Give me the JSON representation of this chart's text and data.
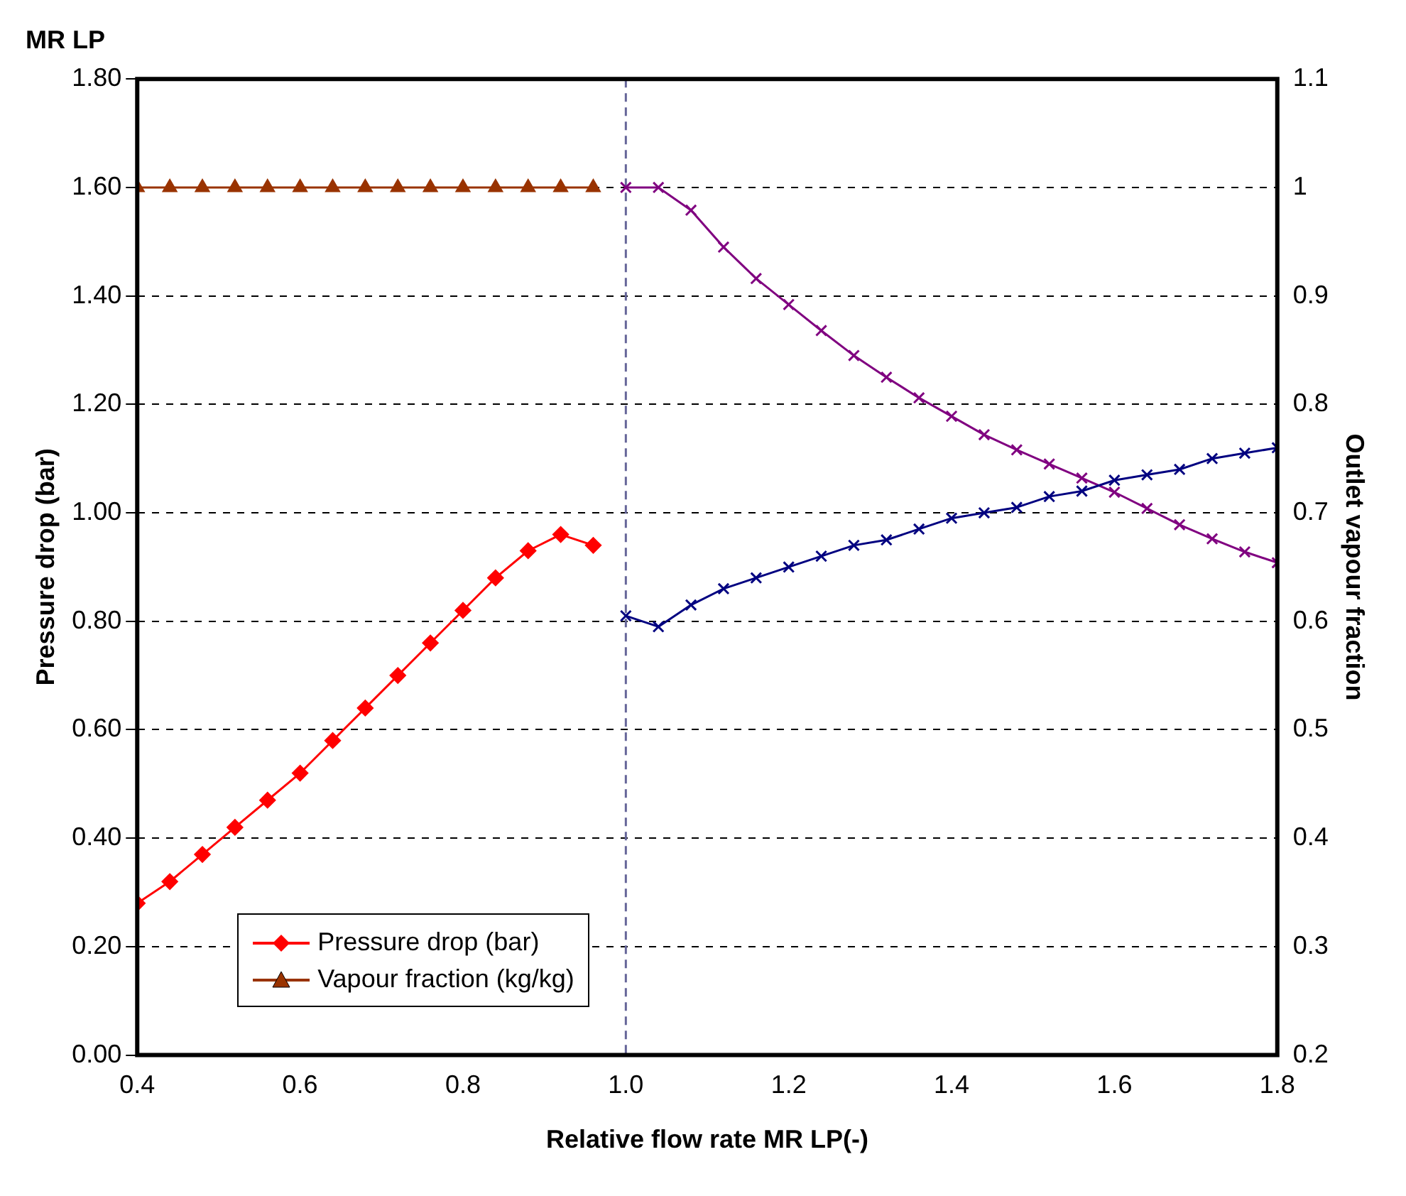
{
  "chart_data": {
    "type": "line",
    "title": "MR LP",
    "xlabel": "Relative flow rate MR LP(-)",
    "ylabel": "Pressure drop (bar)",
    "y2label": "Outlet vapour fraction",
    "xlim": [
      0.4,
      1.8
    ],
    "xticks": [
      {
        "value": 0.4,
        "label": "0.4"
      },
      {
        "value": 0.6,
        "label": "0.6"
      },
      {
        "value": 0.8,
        "label": "0.8"
      },
      {
        "value": 1.0,
        "label": "1.0"
      },
      {
        "value": 1.2,
        "label": "1.2"
      },
      {
        "value": 1.4,
        "label": "1.4"
      },
      {
        "value": 1.6,
        "label": "1.6"
      },
      {
        "value": 1.8,
        "label": "1.8"
      }
    ],
    "ylim": [
      0,
      1.8
    ],
    "yticks": [
      {
        "value": 0,
        "label": "0.00"
      },
      {
        "value": 0.2,
        "label": "0.20"
      },
      {
        "value": 0.4,
        "label": "0.40"
      },
      {
        "value": 0.6,
        "label": "0.60"
      },
      {
        "value": 0.8,
        "label": "0.80"
      },
      {
        "value": 1.0,
        "label": "1.00"
      },
      {
        "value": 1.2,
        "label": "1.20"
      },
      {
        "value": 1.4,
        "label": "1.40"
      },
      {
        "value": 1.6,
        "label": "1.60"
      },
      {
        "value": 1.8,
        "label": "1.80"
      }
    ],
    "y2lim": [
      0.2,
      1.1
    ],
    "y2ticks": [
      0.2,
      0.3,
      0.4,
      0.5,
      0.6,
      0.7,
      0.8,
      0.9,
      1,
      1.1
    ],
    "grid": "y",
    "legend": "bottom left",
    "ref_lines": [
      {
        "axis": "x",
        "value": 1.0,
        "color": "#666699",
        "line_style": "dashed"
      }
    ],
    "series": [
      {
        "name": "Pressure drop (bar)",
        "color": "#ff0000",
        "marker": "diamond",
        "x": [
          0.4,
          0.44,
          0.48,
          0.52,
          0.56,
          0.6,
          0.64,
          0.68,
          0.72,
          0.76,
          0.8,
          0.84,
          0.88,
          0.92,
          0.96
        ],
        "values": [
          0.28,
          0.32,
          0.37,
          0.42,
          0.47,
          0.52,
          0.58,
          0.64,
          0.7,
          0.76,
          0.82,
          0.88,
          0.93,
          0.96,
          0.94
        ]
      },
      {
        "name": "Vapour fraction (kg/kg)",
        "color": "#993300",
        "marker": "triangle",
        "axis": "y2",
        "x": [
          0.4,
          0.44,
          0.48,
          0.52,
          0.56,
          0.6,
          0.64,
          0.68,
          0.72,
          0.76,
          0.8,
          0.84,
          0.88,
          0.92,
          0.96
        ],
        "values": [
          1,
          1,
          1,
          1,
          1,
          1,
          1,
          1,
          1,
          1,
          1,
          1,
          1,
          1,
          1
        ]
      },
      {
        "color": "#000080",
        "marker": "cross",
        "x": [
          1.0,
          1.04,
          1.08,
          1.12,
          1.16,
          1.2,
          1.24,
          1.28,
          1.32,
          1.36,
          1.4,
          1.44,
          1.48,
          1.52,
          1.56,
          1.6,
          1.64,
          1.68,
          1.72,
          1.76,
          1.8
        ],
        "values": [
          0.81,
          0.79,
          0.83,
          0.86,
          0.88,
          0.9,
          0.92,
          0.94,
          0.95,
          0.97,
          0.99,
          1.0,
          1.01,
          1.03,
          1.04,
          1.06,
          1.07,
          1.08,
          1.1,
          1.11,
          1.12
        ]
      },
      {
        "color": "#800080",
        "marker": "cross",
        "axis": "y2",
        "x": [
          1.0,
          1.04,
          1.08,
          1.12,
          1.16,
          1.2,
          1.24,
          1.28,
          1.32,
          1.36,
          1.4,
          1.44,
          1.48,
          1.52,
          1.56,
          1.6,
          1.64,
          1.68,
          1.72,
          1.76,
          1.8
        ],
        "values": [
          1.0,
          1.0,
          0.979,
          0.945,
          0.916,
          0.892,
          0.868,
          0.845,
          0.825,
          0.806,
          0.789,
          0.772,
          0.758,
          0.745,
          0.732,
          0.719,
          0.704,
          0.689,
          0.676,
          0.664,
          0.654
        ]
      }
    ]
  }
}
